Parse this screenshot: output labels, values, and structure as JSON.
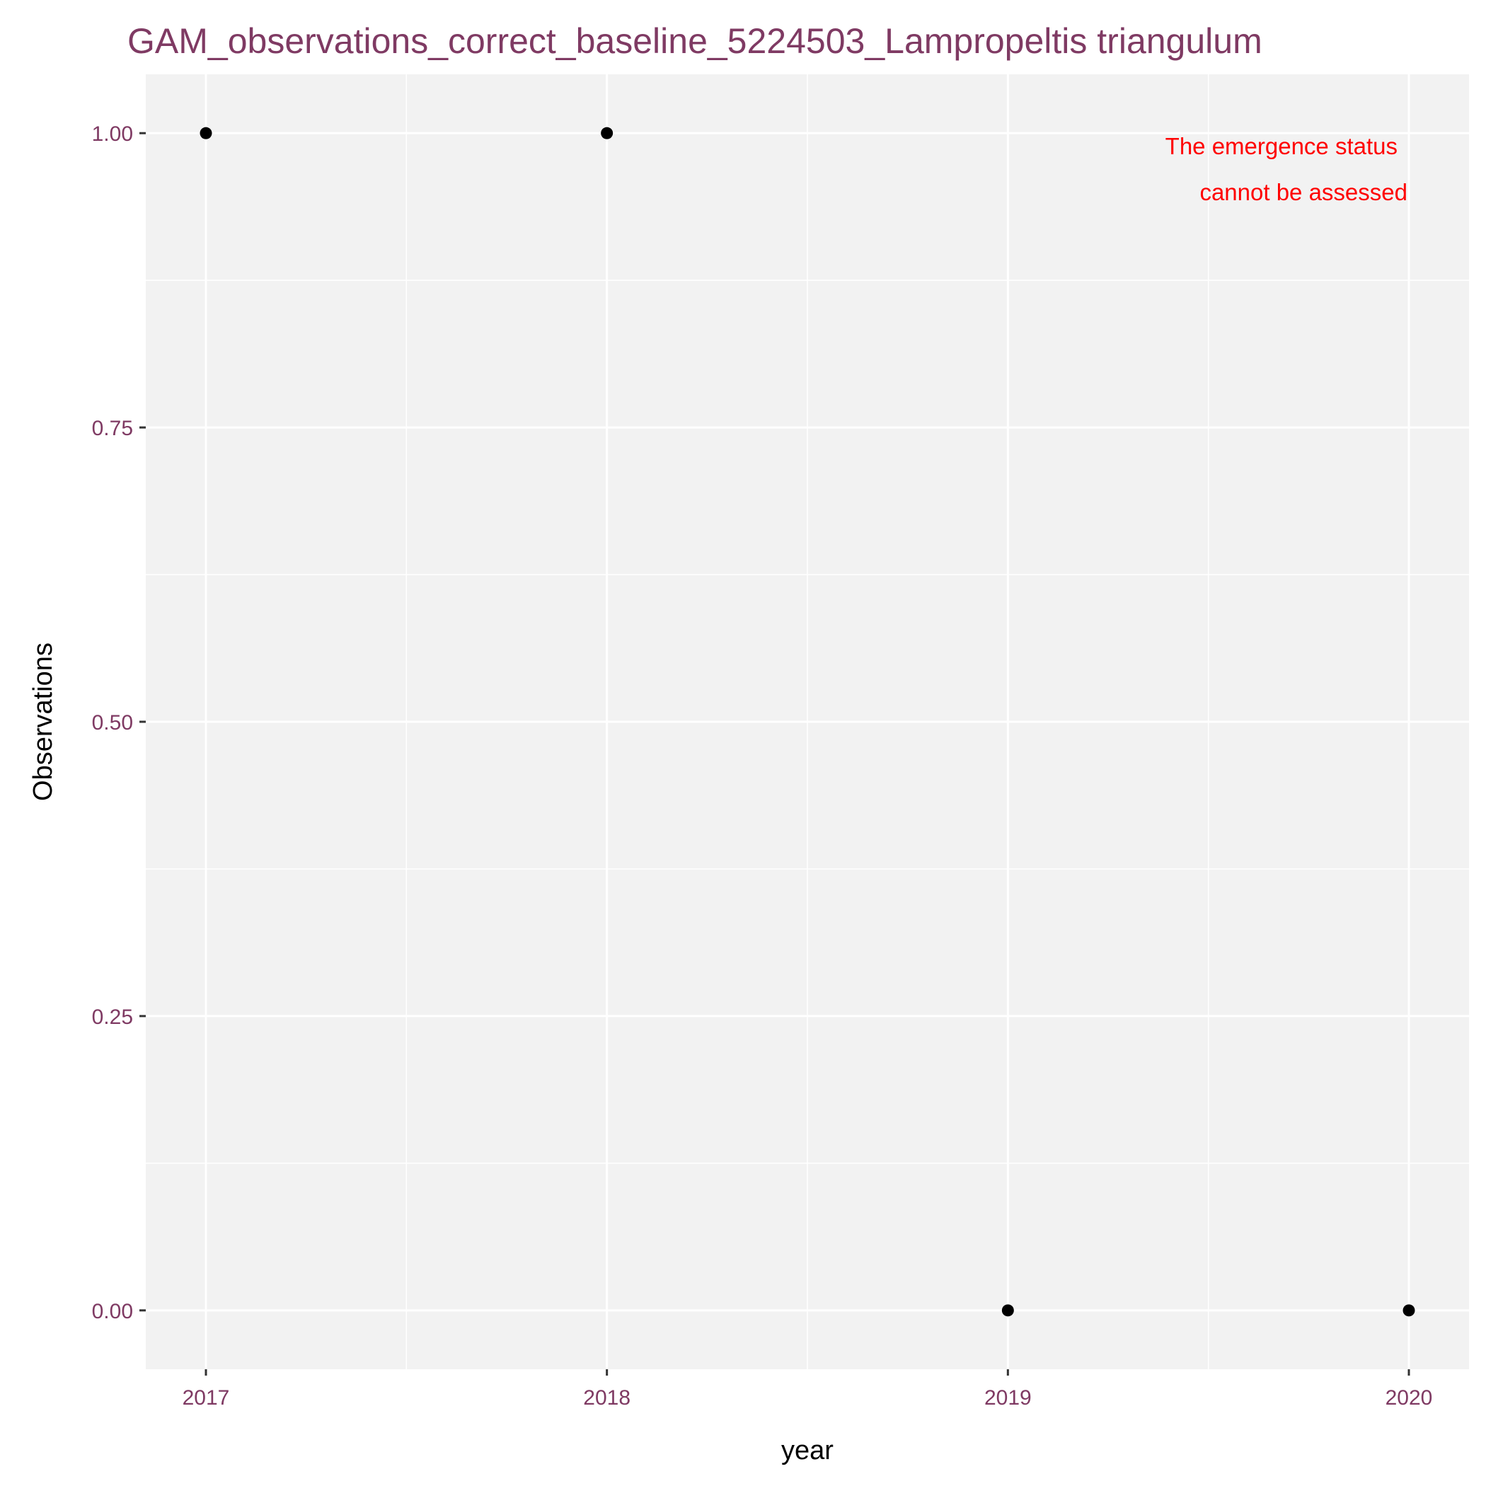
{
  "chart_data": {
    "type": "scatter",
    "title": "GAM_observations_correct_baseline_5224503_Lampropeltis triangulum",
    "xlabel": "year",
    "ylabel": "Observations",
    "x": [
      2017,
      2018,
      2019,
      2020
    ],
    "y": [
      1,
      1,
      0,
      0
    ],
    "xlim": [
      2016.85,
      2020.15
    ],
    "ylim": [
      -0.05,
      1.05
    ],
    "x_ticks": [
      2017,
      2018,
      2019,
      2020
    ],
    "x_tick_labels": [
      "2017",
      "2018",
      "2019",
      "2020"
    ],
    "y_ticks": [
      0,
      0.25,
      0.5,
      0.75,
      1
    ],
    "y_tick_labels": [
      "0.00",
      "0.25",
      "0.50",
      "0.75",
      "1.00"
    ],
    "grid": true,
    "annotation": [
      "The emergence status",
      "cannot be assessed"
    ],
    "colors": {
      "panel_background": "#f2f2f2",
      "grid": "#ffffff",
      "points": "#000000",
      "title": "#7f3a63",
      "tick_labels": "#7f3a63",
      "annotation": "#ff0000"
    }
  }
}
